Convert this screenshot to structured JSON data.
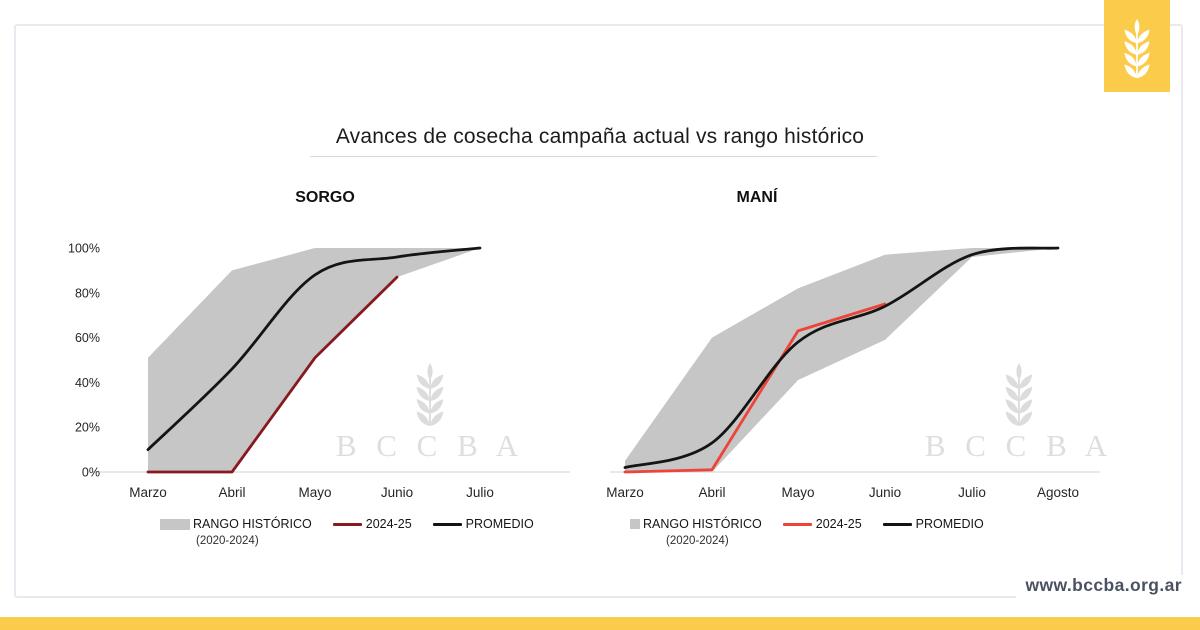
{
  "page": {
    "title": "Avances de cosecha campaña actual vs rango histórico",
    "website": "www.bccba.org.ar",
    "brand_color": "#FBCB4B",
    "watermark_text": "B C C B A",
    "wheat_icon": "wheat-spike-icon"
  },
  "chart_data": [
    {
      "type": "line",
      "title": "SORGO",
      "categories": [
        "Marzo",
        "Abril",
        "Mayo",
        "Junio",
        "Julio"
      ],
      "ylim": [
        0,
        100
      ],
      "grid": false,
      "legend_position": "bottom",
      "y_ticks": {
        "values": [
          0,
          20,
          40,
          60,
          80,
          100
        ],
        "labels": [
          "0%",
          "20%",
          "40%",
          "60%",
          "80%",
          "100%"
        ]
      },
      "band": {
        "name": "RANGO HISTÓRICO (2020-2024)",
        "upper": [
          51,
          90,
          100,
          100,
          100
        ],
        "lower": [
          0,
          0,
          51,
          87,
          100
        ],
        "color": "#C6C6C6"
      },
      "series": [
        {
          "name": "2024-25",
          "values": [
            0,
            0,
            51,
            87,
            null
          ],
          "color": "#87191F",
          "smooth": false
        },
        {
          "name": "PROMEDIO",
          "values": [
            10,
            46,
            88,
            96,
            100
          ],
          "color": "#141414",
          "smooth": true
        }
      ],
      "legend": {
        "band_label": "RANGO HISTÓRICO",
        "band_sublabel": "(2020-2024)",
        "current_label": "2024-25",
        "avg_label": "PROMEDIO"
      }
    },
    {
      "type": "line",
      "title": "MANÍ",
      "categories": [
        "Marzo",
        "Abril",
        "Mayo",
        "Junio",
        "Julio",
        "Agosto"
      ],
      "ylim": [
        0,
        100
      ],
      "grid": false,
      "legend_position": "bottom",
      "y_ticks": {
        "values": [],
        "labels": []
      },
      "band": {
        "name": "RANGO HISTÓRICO (2020-2024)",
        "upper": [
          5,
          60,
          82,
          97,
          100,
          100
        ],
        "lower": [
          0,
          0,
          41,
          59,
          96,
          100
        ],
        "color": "#C6C6C6"
      },
      "series": [
        {
          "name": "2024-25",
          "values": [
            0,
            1,
            63,
            75,
            null,
            null
          ],
          "color": "#EE4438",
          "smooth": false
        },
        {
          "name": "PROMEDIO",
          "values": [
            2,
            13,
            58,
            74,
            97,
            100
          ],
          "color": "#141414",
          "smooth": true
        }
      ],
      "legend": {
        "band_label": "RANGO HISTÓRICO",
        "band_sublabel": "(2020-2024)",
        "current_label": "2024-25",
        "avg_label": "PROMEDIO"
      }
    }
  ]
}
